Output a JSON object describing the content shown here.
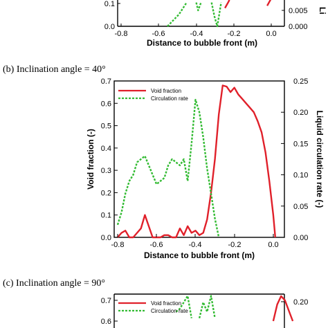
{
  "chart_data": [
    {
      "type": "line",
      "caption": "",
      "xlabel": "Distance to bubble front (m)",
      "y_right_label": "Li",
      "x_ticks": [
        "-0.8",
        "-0.6",
        "-0.4",
        "-0.2",
        "0.0"
      ],
      "y_left_ticks": [
        "0.1",
        "0.0"
      ],
      "y_right_ticks": [
        "0.005",
        "0.000"
      ],
      "series": [
        {
          "axis": "left",
          "color": "#e0202a",
          "dash": "",
          "points": [
            [
              -0.26,
              0.08
            ],
            [
              -0.24,
              0.11
            ],
            [
              -0.22,
              0.16
            ]
          ]
        },
        {
          "axis": "left",
          "color": "#e0202a",
          "dash": "",
          "points": [
            [
              0.0,
              0.16
            ],
            [
              -0.02,
              0.12
            ],
            [
              -0.04,
              0.09
            ]
          ]
        },
        {
          "axis": "right",
          "color": "#33bb33",
          "dash": "3,2",
          "points": [
            [
              -0.56,
              0.0
            ],
            [
              -0.53,
              0.003
            ],
            [
              -0.5,
              0.006
            ],
            [
              -0.48,
              0.009
            ],
            [
              -0.46,
              0.012
            ]
          ]
        },
        {
          "axis": "right",
          "color": "#33bb33",
          "dash": "3,2",
          "points": [
            [
              -0.41,
              0.012
            ],
            [
              -0.4,
              0.008
            ],
            [
              -0.385,
              0.012
            ]
          ]
        },
        {
          "axis": "right",
          "color": "#33bb33",
          "dash": "3,2",
          "points": [
            [
              -0.33,
              0.012
            ],
            [
              -0.315,
              0.005
            ],
            [
              -0.3,
              0.0
            ],
            [
              -0.29,
              0.006
            ],
            [
              -0.28,
              0.012
            ]
          ]
        }
      ]
    },
    {
      "type": "line",
      "caption": "(b)   Inclination angle = 40°",
      "xlabel": "Distance to bubble front (m)",
      "ylabel": "Void fraction (-)",
      "y_right_label": "Liquid circulation rate (-)",
      "xlim": [
        -0.8,
        0.05
      ],
      "ylim": [
        0,
        0.7
      ],
      "y_right_lim": [
        0,
        0.25
      ],
      "x_ticks": [
        "-0.8",
        "-0.6",
        "-0.4",
        "-0.2",
        "0.0"
      ],
      "y_left_ticks": [
        "0.0",
        "0.1",
        "0.2",
        "0.3",
        "0.4",
        "0.5",
        "0.6",
        "0.7"
      ],
      "y_right_ticks": [
        "0.00",
        "0.05",
        "0.10",
        "0.15",
        "0.20",
        "0.25"
      ],
      "legend": [
        "Void fraction",
        "Circulation rate"
      ],
      "legend_position": "top-left",
      "series": [
        {
          "name": "Void fraction",
          "axis": "left",
          "color": "#e0202a",
          "dash": "",
          "points": [
            [
              -0.8,
              0.0
            ],
            [
              -0.78,
              0.02
            ],
            [
              -0.76,
              0.03
            ],
            [
              -0.74,
              0.0
            ],
            [
              -0.72,
              0.0
            ],
            [
              -0.7,
              0.02
            ],
            [
              -0.68,
              0.04
            ],
            [
              -0.66,
              0.1
            ],
            [
              -0.64,
              0.05
            ],
            [
              -0.62,
              0.0
            ],
            [
              -0.6,
              0.0
            ],
            [
              -0.58,
              0.0
            ],
            [
              -0.56,
              0.01
            ],
            [
              -0.54,
              0.01
            ],
            [
              -0.52,
              0.0
            ],
            [
              -0.5,
              0.0
            ],
            [
              -0.48,
              0.04
            ],
            [
              -0.46,
              0.01
            ],
            [
              -0.44,
              0.05
            ],
            [
              -0.42,
              0.02
            ],
            [
              -0.4,
              0.03
            ],
            [
              -0.38,
              0.01
            ],
            [
              -0.36,
              0.02
            ],
            [
              -0.34,
              0.08
            ],
            [
              -0.32,
              0.2
            ],
            [
              -0.3,
              0.35
            ],
            [
              -0.28,
              0.55
            ],
            [
              -0.26,
              0.68
            ],
            [
              -0.24,
              0.675
            ],
            [
              -0.22,
              0.65
            ],
            [
              -0.2,
              0.67
            ],
            [
              -0.18,
              0.64
            ],
            [
              -0.16,
              0.62
            ],
            [
              -0.14,
              0.6
            ],
            [
              -0.12,
              0.58
            ],
            [
              -0.1,
              0.56
            ],
            [
              -0.08,
              0.52
            ],
            [
              -0.06,
              0.47
            ],
            [
              -0.04,
              0.38
            ],
            [
              -0.02,
              0.25
            ],
            [
              0.0,
              0.1
            ],
            [
              0.01,
              0.0
            ]
          ]
        },
        {
          "name": "Circulation rate",
          "axis": "right",
          "color": "#33bb33",
          "dash": "3,2",
          "points": [
            [
              -0.8,
              0.02
            ],
            [
              -0.78,
              0.04
            ],
            [
              -0.76,
              0.07
            ],
            [
              -0.74,
              0.09
            ],
            [
              -0.72,
              0.1
            ],
            [
              -0.7,
              0.12
            ],
            [
              -0.68,
              0.125
            ],
            [
              -0.66,
              0.13
            ],
            [
              -0.64,
              0.115
            ],
            [
              -0.62,
              0.1
            ],
            [
              -0.6,
              0.085
            ],
            [
              -0.58,
              0.09
            ],
            [
              -0.56,
              0.095
            ],
            [
              -0.54,
              0.115
            ],
            [
              -0.52,
              0.125
            ],
            [
              -0.5,
              0.12
            ],
            [
              -0.48,
              0.115
            ],
            [
              -0.46,
              0.125
            ],
            [
              -0.44,
              0.09
            ],
            [
              -0.42,
              0.15
            ],
            [
              -0.4,
              0.22
            ],
            [
              -0.38,
              0.2
            ],
            [
              -0.36,
              0.16
            ],
            [
              -0.34,
              0.11
            ],
            [
              -0.32,
              0.07
            ],
            [
              -0.3,
              0.03
            ],
            [
              -0.28,
              0.0
            ]
          ]
        }
      ]
    },
    {
      "type": "line",
      "caption": "(c)   Inclination angle = 90°",
      "x_ticks": [],
      "y_left_ticks": [
        "0.7",
        "0.6"
      ],
      "y_right_ticks": [
        "0.20"
      ],
      "legend": [
        "Void fraction",
        "Circulation rate"
      ],
      "legend_position": "top-left",
      "series": [
        {
          "name": "Void fraction",
          "axis": "left",
          "color": "#e0202a",
          "dash": "",
          "points": [
            [
              0.0,
              0.6
            ],
            [
              0.02,
              0.68
            ],
            [
              0.04,
              0.72
            ],
            [
              0.06,
              0.7
            ],
            [
              0.08,
              0.65
            ],
            [
              0.1,
              0.6
            ]
          ]
        },
        {
          "name": "Circulation rate",
          "axis": "right",
          "color": "#33bb33",
          "dash": "3,2",
          "points": [
            [
              -0.5,
              0.21
            ],
            [
              -0.48,
              0.215
            ],
            [
              -0.46,
              0.225
            ],
            [
              -0.44,
              0.235
            ],
            [
              -0.42,
              0.2
            ]
          ]
        },
        {
          "axis": "right",
          "color": "#33bb33",
          "dash": "3,2",
          "points": [
            [
              -0.38,
              0.2
            ],
            [
              -0.36,
              0.225
            ],
            [
              -0.34,
              0.21
            ],
            [
              -0.32,
              0.235
            ],
            [
              -0.3,
              0.2
            ]
          ]
        }
      ]
    }
  ]
}
